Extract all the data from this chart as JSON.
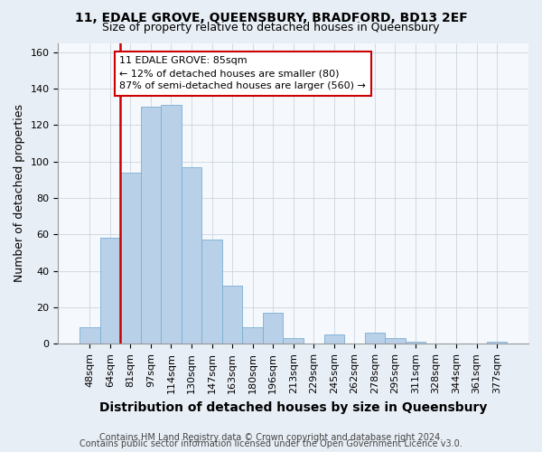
{
  "title": "11, EDALE GROVE, QUEENSBURY, BRADFORD, BD13 2EF",
  "subtitle": "Size of property relative to detached houses in Queensbury",
  "xlabel": "Distribution of detached houses by size in Queensbury",
  "ylabel": "Number of detached properties",
  "categories": [
    "48sqm",
    "64sqm",
    "81sqm",
    "97sqm",
    "114sqm",
    "130sqm",
    "147sqm",
    "163sqm",
    "180sqm",
    "196sqm",
    "213sqm",
    "229sqm",
    "245sqm",
    "262sqm",
    "278sqm",
    "295sqm",
    "311sqm",
    "328sqm",
    "344sqm",
    "361sqm",
    "377sqm"
  ],
  "values": [
    9,
    58,
    94,
    130,
    131,
    97,
    57,
    32,
    9,
    17,
    3,
    0,
    5,
    0,
    6,
    3,
    1,
    0,
    0,
    0,
    1
  ],
  "bar_color": "#b8d0e8",
  "bar_edge_color": "#7aafd4",
  "vline_index": 2,
  "vline_color": "#cc0000",
  "annotation_text": "11 EDALE GROVE: 85sqm\n← 12% of detached houses are smaller (80)\n87% of semi-detached houses are larger (560) →",
  "annotation_box_color": "#cc0000",
  "ylim": [
    0,
    165
  ],
  "yticks": [
    0,
    20,
    40,
    60,
    80,
    100,
    120,
    140,
    160
  ],
  "footer1": "Contains HM Land Registry data © Crown copyright and database right 2024.",
  "footer2": "Contains public sector information licensed under the Open Government Licence v3.0.",
  "background_color": "#e8eef5",
  "plot_bg_color": "#f5f8fc",
  "title_fontsize": 10,
  "subtitle_fontsize": 9,
  "axis_label_fontsize": 9,
  "tick_fontsize": 8,
  "annotation_fontsize": 8,
  "footer_fontsize": 7
}
